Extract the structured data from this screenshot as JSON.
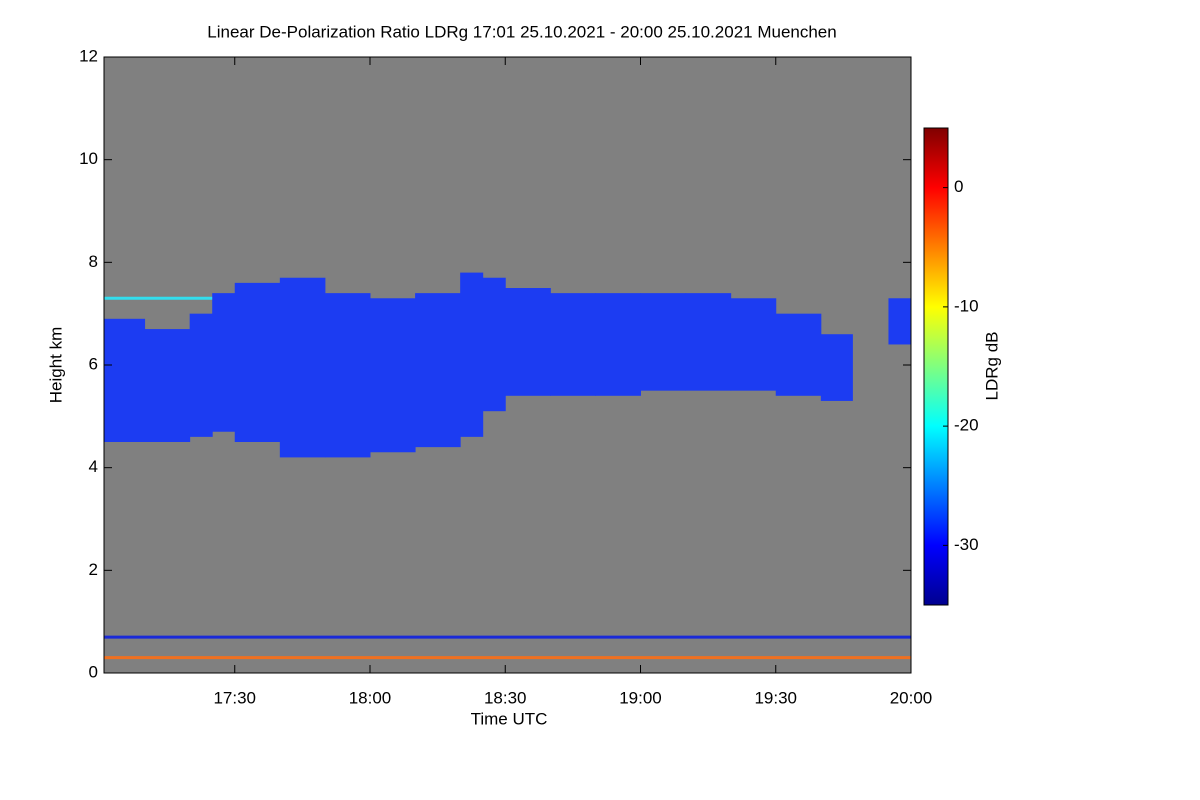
{
  "chart_data": {
    "type": "heatmap",
    "title": "Linear De-Polarization Ratio LDRg   17:01 25.10.2021 - 20:00 25.10.2021 Muenchen",
    "xlabel": "Time UTC",
    "ylabel": "Height km",
    "xlim": [
      "17:01",
      "20:00"
    ],
    "xticks": [
      "17:30",
      "18:00",
      "18:30",
      "19:00",
      "19:30",
      "20:00"
    ],
    "ylim": [
      0,
      12
    ],
    "yticks": [
      0,
      2,
      4,
      6,
      8,
      10,
      12
    ],
    "background": "#808080",
    "cloud": {
      "color": "#1c3cf2",
      "x": [
        "17:01",
        "17:10",
        "17:20",
        "17:25",
        "17:30",
        "17:40",
        "17:50",
        "18:00",
        "18:10",
        "18:20",
        "18:25",
        "18:30",
        "18:40",
        "18:50",
        "19:00",
        "19:10",
        "19:20",
        "19:30",
        "19:40",
        "19:47",
        "19:55",
        "20:00"
      ],
      "top": [
        6.9,
        6.7,
        7.0,
        7.4,
        7.6,
        7.7,
        7.4,
        7.3,
        7.4,
        7.8,
        7.7,
        7.5,
        7.4,
        7.4,
        7.4,
        7.4,
        7.3,
        7.0,
        6.6,
        null,
        7.3,
        6.8
      ],
      "base": [
        4.5,
        4.5,
        4.6,
        4.7,
        4.5,
        4.2,
        4.2,
        4.3,
        4.4,
        4.6,
        5.1,
        5.4,
        5.4,
        5.4,
        5.5,
        5.5,
        5.5,
        5.4,
        5.3,
        null,
        6.4,
        6.5
      ]
    },
    "layers": [
      {
        "x": [
          "17:01",
          "17:25"
        ],
        "height": 7.3,
        "color": "#33ddee"
      },
      {
        "x": [
          "17:01",
          "20:00"
        ],
        "height": 0.7,
        "color": "#1a2ad8"
      },
      {
        "x": [
          "17:01",
          "20:00"
        ],
        "height": 0.3,
        "color": "#f07020"
      }
    ],
    "colorbar": {
      "label": "LDRg dB",
      "colormap": "jet",
      "clim": [
        -35,
        5
      ],
      "ticks": [
        0,
        -10,
        -20,
        -30
      ]
    }
  }
}
